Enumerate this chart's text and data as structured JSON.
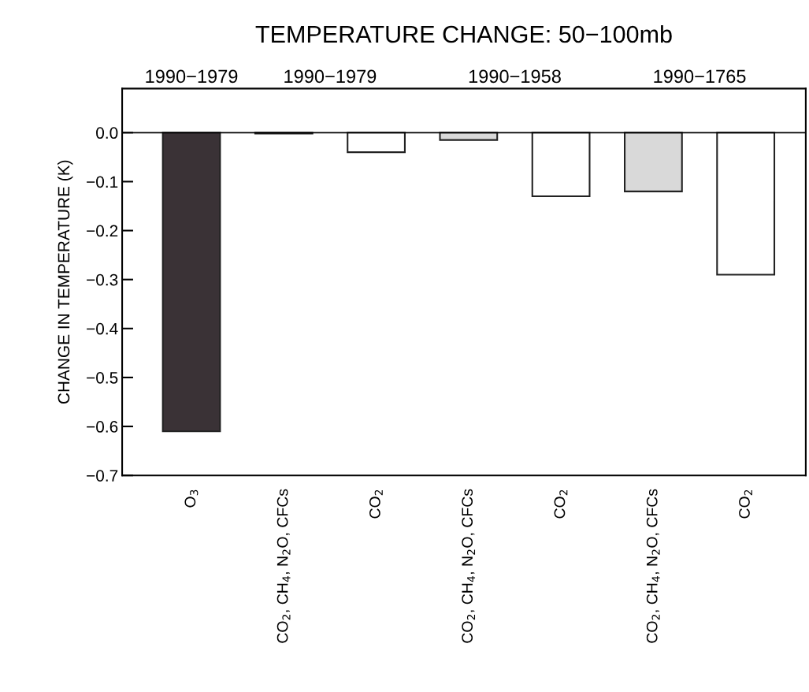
{
  "chart_data": {
    "type": "bar",
    "title": "TEMPERATURE CHANGE: 50−100mb",
    "ylabel": "CHANGE IN TEMPERATURE (K)",
    "categories": [
      "O$_{3}$",
      "CO$_{2}$, CH$_{4}$, N$_{2}$O, CFCs",
      "CO$_{2}$",
      "CO$_{2}$, CH$_{4}$, N$_{2}$O, CFCs",
      "CO$_{2}$",
      "CO$_{2}$, CH$_{4}$, N$_{2}$O, CFCs",
      "CO$_{2}$"
    ],
    "values": [
      -0.61,
      -0.002,
      -0.04,
      -0.015,
      -0.13,
      -0.12,
      -0.29
    ],
    "colors": [
      "#3a3236",
      "#d9d9d9",
      "#ffffff",
      "#d9d9d9",
      "#ffffff",
      "#d9d9d9",
      "#ffffff"
    ],
    "annotations": [
      "1990−1979",
      "1990−1979",
      "1990−1958",
      "1990−1765"
    ],
    "ylim": [
      -0.7,
      0.09
    ],
    "yticks": [
      {
        "value": 0,
        "label": "0.0"
      },
      {
        "value": -0.1,
        "label": "−0.1"
      },
      {
        "value": -0.2,
        "label": "−0.2"
      },
      {
        "value": -0.3,
        "label": "−0.3"
      },
      {
        "value": -0.4,
        "label": "−0.4"
      },
      {
        "value": -0.5,
        "label": "−0.5"
      },
      {
        "value": -0.6,
        "label": "−0.6"
      },
      {
        "value": -0.7,
        "label": "−0.7"
      }
    ],
    "ref_lines": [
      {
        "axis": "y",
        "value": 0,
        "color": "#000000"
      }
    ],
    "grid": false,
    "legend": false
  }
}
